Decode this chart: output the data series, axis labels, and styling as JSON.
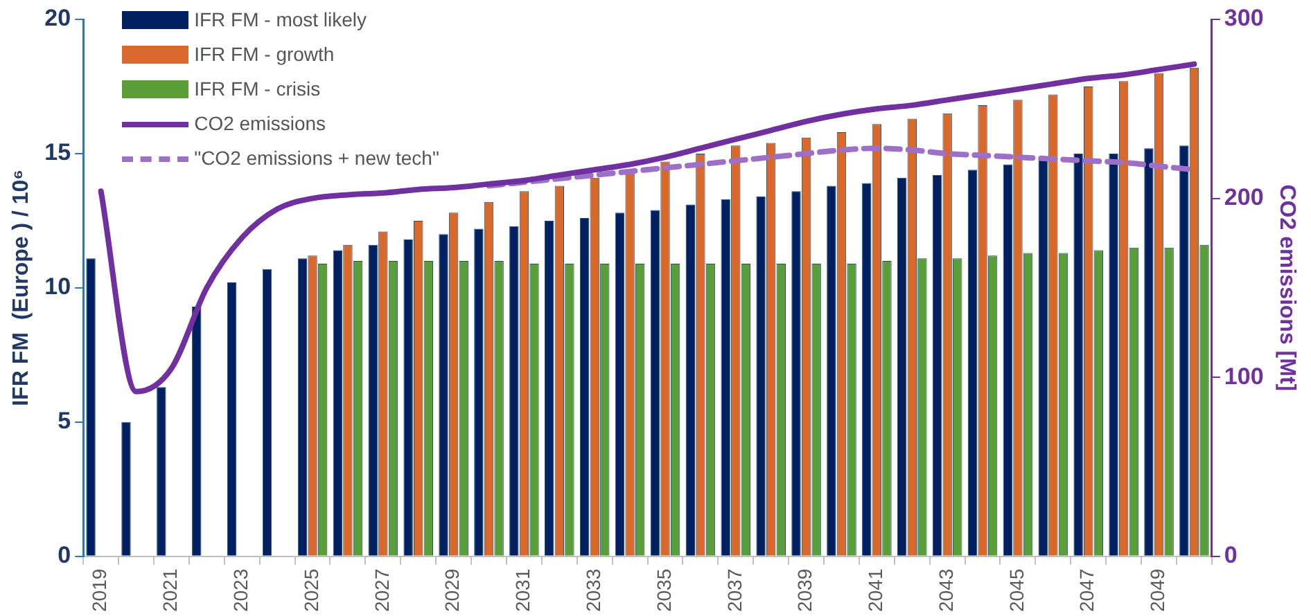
{
  "chart_data": {
    "type": "bar",
    "ylabel": "IFR FM  (Europe ) / 10⁶",
    "y2label": "CO2 emissions [Mt]",
    "categories": [
      "2019",
      null,
      "2021",
      null,
      "2023",
      null,
      "2025",
      null,
      "2027",
      null,
      "2029",
      null,
      "2031",
      null,
      "2033",
      null,
      "2035",
      null,
      "2037",
      null,
      "2039",
      null,
      "2041",
      null,
      "2043",
      null,
      "2045",
      null,
      "2047",
      null,
      "2049",
      null
    ],
    "series": [
      {
        "name": "IFR FM - most likely",
        "color": "#002060",
        "values": [
          11.1,
          5.0,
          6.3,
          9.3,
          10.2,
          10.7,
          11.1,
          11.4,
          11.6,
          11.8,
          12.0,
          12.2,
          12.3,
          12.5,
          12.6,
          12.8,
          12.9,
          13.1,
          13.3,
          13.4,
          13.6,
          13.8,
          13.9,
          14.1,
          14.2,
          14.4,
          14.6,
          14.8,
          15.0,
          15.0,
          15.2,
          15.3
        ]
      },
      {
        "name": "IFR FM - growth",
        "color": "#d9682b",
        "values": [
          null,
          null,
          null,
          null,
          null,
          null,
          11.2,
          11.6,
          12.1,
          12.5,
          12.8,
          13.2,
          13.6,
          13.8,
          14.1,
          14.4,
          14.7,
          15.0,
          15.3,
          15.4,
          15.6,
          15.8,
          16.1,
          16.3,
          16.5,
          16.8,
          17.0,
          17.2,
          17.5,
          17.7,
          18.0,
          18.2
        ]
      },
      {
        "name": "IFR FM - crisis",
        "color": "#5a9e3a",
        "values": [
          null,
          null,
          null,
          null,
          null,
          null,
          10.9,
          11.0,
          11.0,
          11.0,
          11.0,
          11.0,
          10.9,
          10.9,
          10.9,
          10.9,
          10.9,
          10.9,
          10.9,
          10.9,
          10.9,
          10.9,
          11.0,
          11.1,
          11.1,
          11.2,
          11.3,
          11.3,
          11.4,
          11.5,
          11.5,
          11.6
        ]
      },
      {
        "name": "CO2 emissions",
        "type": "line",
        "axis": "y2",
        "color": "#7030a0",
        "line_style": "solid",
        "values": [
          204,
          92,
          105,
          150,
          178,
          194,
          200,
          202,
          203,
          205,
          206,
          208,
          210,
          213,
          216,
          219,
          223,
          228,
          233,
          238,
          243,
          247,
          250,
          252,
          255,
          258,
          261,
          264,
          267,
          269,
          272,
          275
        ]
      },
      {
        "name": "\"CO2 emissions + new tech\"",
        "type": "line",
        "axis": "y2",
        "color": "#9e6fc8",
        "line_style": "dashed",
        "values": [
          null,
          null,
          null,
          null,
          null,
          null,
          null,
          null,
          null,
          null,
          null,
          207,
          209,
          211,
          213,
          215,
          217,
          219,
          221,
          223,
          225,
          227,
          228,
          227,
          225,
          224,
          223,
          222,
          221,
          220,
          218,
          216
        ]
      }
    ],
    "ylim": [
      0,
      20
    ],
    "yticks": [
      0,
      5,
      10,
      15,
      20
    ],
    "y2lim": [
      0,
      300
    ],
    "y2ticks": [
      0,
      100,
      200,
      300
    ],
    "grid": false,
    "legend": "top left",
    "marker": "none"
  }
}
